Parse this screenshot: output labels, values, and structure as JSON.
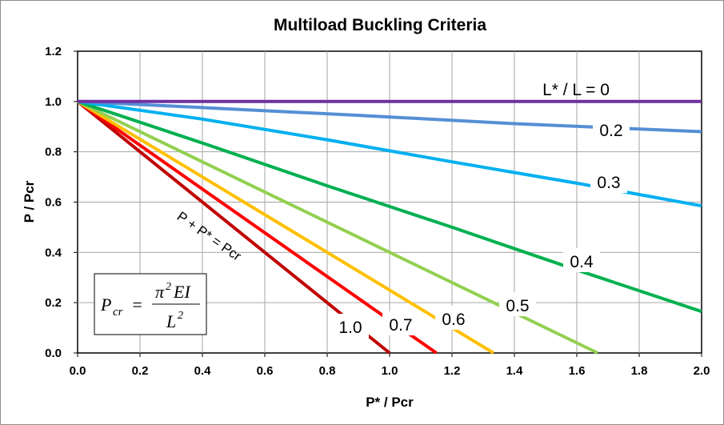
{
  "chart_data": {
    "type": "line",
    "title": "Multiload Buckling Criteria",
    "xlabel": "P* / Pcr",
    "ylabel": "P / Pcr",
    "xlim": [
      0,
      2.0
    ],
    "ylim": [
      0,
      1.2
    ],
    "x_ticks": [
      "0.0",
      "0.2",
      "0.4",
      "0.6",
      "0.8",
      "1.0",
      "1.2",
      "1.4",
      "1.6",
      "1.8",
      "2.0"
    ],
    "y_ticks": [
      "0.0",
      "0.2",
      "0.4",
      "0.6",
      "0.8",
      "1.0",
      "1.2"
    ],
    "grid": true,
    "series": [
      {
        "name": "L* / L = 0",
        "color": "#7030a0",
        "x": [
          0,
          2.0
        ],
        "y": [
          1.0,
          1.0
        ]
      },
      {
        "name": "0.2",
        "color": "#558ed5",
        "x": [
          0,
          0.4,
          0.9,
          1.4,
          2.0
        ],
        "y": [
          1.0,
          0.976,
          0.945,
          0.912,
          0.88
        ]
      },
      {
        "name": "0.3",
        "color": "#00b0f0",
        "x": [
          0,
          0.4,
          0.8,
          1.2,
          1.6,
          2.0
        ],
        "y": [
          1.0,
          0.93,
          0.848,
          0.76,
          0.675,
          0.585
        ]
      },
      {
        "name": "0.4",
        "color": "#00b050",
        "x": [
          0,
          0.4,
          0.8,
          1.2,
          1.6,
          2.0
        ],
        "y": [
          1.0,
          0.835,
          0.665,
          0.5,
          0.33,
          0.165
        ]
      },
      {
        "name": "0.5",
        "color": "#92d050",
        "x": [
          0,
          0.4,
          0.8,
          1.2,
          1.667
        ],
        "y": [
          1.0,
          0.76,
          0.52,
          0.28,
          0.0
        ]
      },
      {
        "name": "0.6",
        "color": "#ffc000",
        "x": [
          0,
          0.4,
          0.8,
          1.333
        ],
        "y": [
          1.0,
          0.7,
          0.4,
          0.0
        ]
      },
      {
        "name": "0.7",
        "color": "#ff0000",
        "x": [
          0,
          0.4,
          0.8,
          1.15
        ],
        "y": [
          1.0,
          0.652,
          0.304,
          0.0
        ]
      },
      {
        "name": "1.0",
        "color": "#c00000",
        "x": [
          0,
          0.5,
          1.0
        ],
        "y": [
          1.0,
          0.5,
          0.0
        ]
      }
    ],
    "annotations": {
      "equation": "P + P* = Pcr",
      "formula_lhs": "P",
      "formula_lhs_sub": "cr",
      "formula_eq": "=",
      "formula_num": "π",
      "formula_num_sup": "2",
      "formula_num_rest": "EI",
      "formula_den": "L",
      "formula_den_sup": "2"
    }
  }
}
